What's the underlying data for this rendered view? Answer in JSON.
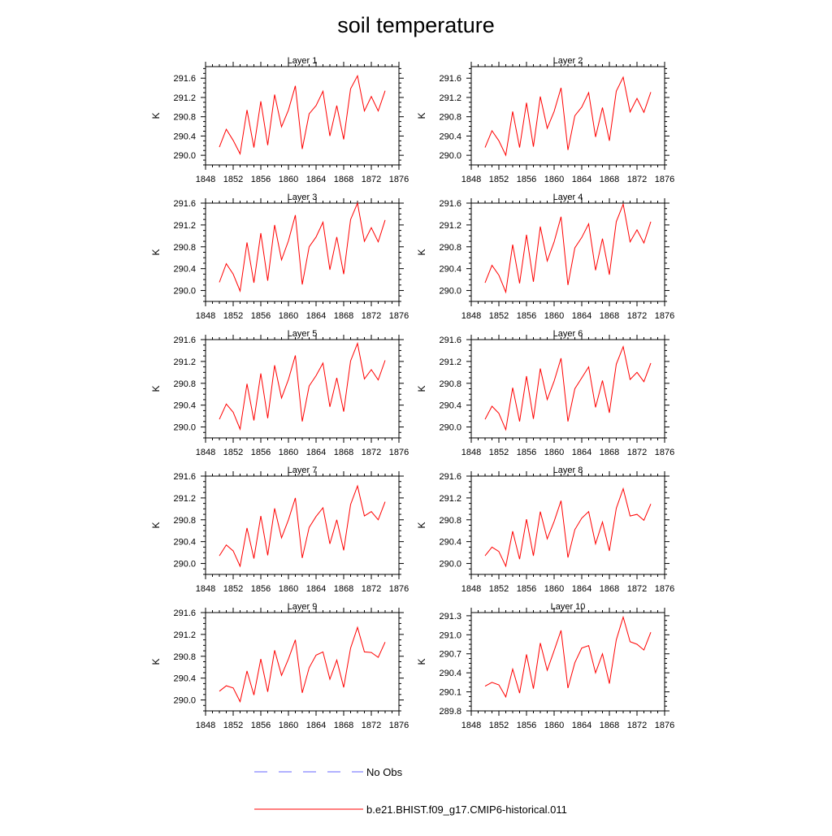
{
  "figure": {
    "title": "soil temperature",
    "legend": [
      {
        "label": "No Obs",
        "color": "#6464ff",
        "dash": "dashed"
      },
      {
        "label": "b.e21.BHIST.f09_g17.CMIP6-historical.011",
        "color": "#ff0000",
        "dash": "solid"
      }
    ]
  },
  "chart_data": [
    {
      "type": "line",
      "title": "Layer 1",
      "ylabel": "K",
      "x": [
        1850,
        1851,
        1852,
        1853,
        1854,
        1855,
        1856,
        1857,
        1858,
        1859,
        1860,
        1861,
        1862,
        1863,
        1864,
        1865,
        1866,
        1867,
        1868,
        1869,
        1870,
        1871,
        1872,
        1873,
        1874
      ],
      "series": [
        {
          "name": "b.e21.BHIST.f09_g17.CMIP6-historical.011",
          "color": "#ff0000",
          "values": [
            290.17,
            290.54,
            290.31,
            290.03,
            290.94,
            290.16,
            291.12,
            290.21,
            291.26,
            290.59,
            290.94,
            291.44,
            290.13,
            290.86,
            291.03,
            291.33,
            290.4,
            291.03,
            290.33,
            291.38,
            291.65,
            290.92,
            291.22,
            290.92,
            291.34
          ]
        }
      ],
      "xlim": [
        1848,
        1876
      ],
      "xticks": [
        1848,
        1852,
        1856,
        1860,
        1864,
        1868,
        1872,
        1876
      ],
      "ylim": [
        289.8,
        291.84
      ],
      "yticks": [
        290.0,
        290.4,
        290.8,
        291.2,
        291.6
      ],
      "ytick_labels": [
        "290.0",
        "290.4",
        "290.8",
        "291.2",
        "291.6"
      ]
    },
    {
      "type": "line",
      "title": "Layer 2",
      "ylabel": "K",
      "x": [
        1850,
        1851,
        1852,
        1853,
        1854,
        1855,
        1856,
        1857,
        1858,
        1859,
        1860,
        1861,
        1862,
        1863,
        1864,
        1865,
        1866,
        1867,
        1868,
        1869,
        1870,
        1871,
        1872,
        1873,
        1874
      ],
      "series": [
        {
          "name": "b.e21.BHIST.f09_g17.CMIP6-historical.011",
          "color": "#ff0000",
          "values": [
            290.16,
            290.51,
            290.3,
            290.0,
            290.91,
            290.16,
            291.09,
            290.18,
            291.22,
            290.56,
            290.91,
            291.4,
            290.11,
            290.82,
            291.0,
            291.3,
            290.38,
            290.99,
            290.3,
            291.33,
            291.62,
            290.9,
            291.18,
            290.89,
            291.31
          ]
        }
      ],
      "xlim": [
        1848,
        1876
      ],
      "xticks": [
        1848,
        1852,
        1856,
        1860,
        1864,
        1868,
        1872,
        1876
      ],
      "ylim": [
        289.8,
        291.84
      ],
      "yticks": [
        290.0,
        290.4,
        290.8,
        291.2,
        291.6
      ],
      "ytick_labels": [
        "290.0",
        "290.4",
        "290.8",
        "291.2",
        "291.6"
      ]
    },
    {
      "type": "line",
      "title": "Layer 3",
      "ylabel": "K",
      "x": [
        1850,
        1851,
        1852,
        1853,
        1854,
        1855,
        1856,
        1857,
        1858,
        1859,
        1860,
        1861,
        1862,
        1863,
        1864,
        1865,
        1866,
        1867,
        1868,
        1869,
        1870,
        1871,
        1872,
        1873,
        1874
      ],
      "series": [
        {
          "name": "b.e21.BHIST.f09_g17.CMIP6-historical.011",
          "color": "#ff0000",
          "values": [
            290.15,
            290.49,
            290.3,
            289.99,
            290.88,
            290.14,
            291.05,
            290.18,
            291.2,
            290.56,
            290.91,
            291.38,
            290.11,
            290.8,
            290.98,
            291.25,
            290.38,
            290.98,
            290.3,
            291.3,
            291.6,
            290.9,
            291.15,
            290.89,
            291.29
          ]
        }
      ],
      "xlim": [
        1848,
        1876
      ],
      "xticks": [
        1848,
        1852,
        1856,
        1860,
        1864,
        1868,
        1872,
        1876
      ],
      "ylim": [
        289.8,
        291.6
      ],
      "yticks": [
        290.0,
        290.4,
        290.8,
        291.2,
        291.6
      ],
      "ytick_labels": [
        "290.0",
        "290.4",
        "290.8",
        "291.2",
        "291.6"
      ]
    },
    {
      "type": "line",
      "title": "Layer 4",
      "ylabel": "K",
      "x": [
        1850,
        1851,
        1852,
        1853,
        1854,
        1855,
        1856,
        1857,
        1858,
        1859,
        1860,
        1861,
        1862,
        1863,
        1864,
        1865,
        1866,
        1867,
        1868,
        1869,
        1870,
        1871,
        1872,
        1873,
        1874
      ],
      "series": [
        {
          "name": "b.e21.BHIST.f09_g17.CMIP6-historical.011",
          "color": "#ff0000",
          "values": [
            290.14,
            290.46,
            290.28,
            289.97,
            290.84,
            290.13,
            291.02,
            290.16,
            291.17,
            290.54,
            290.89,
            291.35,
            290.1,
            290.78,
            290.97,
            291.22,
            290.37,
            290.95,
            290.29,
            291.26,
            291.58,
            290.89,
            291.11,
            290.87,
            291.26
          ]
        }
      ],
      "xlim": [
        1848,
        1876
      ],
      "xticks": [
        1848,
        1852,
        1856,
        1860,
        1864,
        1868,
        1872,
        1876
      ],
      "ylim": [
        289.8,
        291.6
      ],
      "yticks": [
        290.0,
        290.4,
        290.8,
        291.2,
        291.6
      ],
      "ytick_labels": [
        "290.0",
        "290.4",
        "290.8",
        "291.2",
        "291.6"
      ]
    },
    {
      "type": "line",
      "title": "Layer 5",
      "ylabel": "K",
      "x": [
        1850,
        1851,
        1852,
        1853,
        1854,
        1855,
        1856,
        1857,
        1858,
        1859,
        1860,
        1861,
        1862,
        1863,
        1864,
        1865,
        1866,
        1867,
        1868,
        1869,
        1870,
        1871,
        1872,
        1873,
        1874
      ],
      "series": [
        {
          "name": "b.e21.BHIST.f09_g17.CMIP6-historical.011",
          "color": "#ff0000",
          "values": [
            290.14,
            290.42,
            290.27,
            289.96,
            290.79,
            290.12,
            290.98,
            290.16,
            291.13,
            290.53,
            290.87,
            291.31,
            290.1,
            290.75,
            290.94,
            291.17,
            290.37,
            290.9,
            290.28,
            291.21,
            291.53,
            290.88,
            291.05,
            290.86,
            291.22
          ]
        }
      ],
      "xlim": [
        1848,
        1876
      ],
      "xticks": [
        1848,
        1852,
        1856,
        1860,
        1864,
        1868,
        1872,
        1876
      ],
      "ylim": [
        289.8,
        291.6
      ],
      "yticks": [
        290.0,
        290.4,
        290.8,
        291.2,
        291.6
      ],
      "ytick_labels": [
        "290.0",
        "290.4",
        "290.8",
        "291.2",
        "291.6"
      ]
    },
    {
      "type": "line",
      "title": "Layer 6",
      "ylabel": "K",
      "x": [
        1850,
        1851,
        1852,
        1853,
        1854,
        1855,
        1856,
        1857,
        1858,
        1859,
        1860,
        1861,
        1862,
        1863,
        1864,
        1865,
        1866,
        1867,
        1868,
        1869,
        1870,
        1871,
        1872,
        1873,
        1874
      ],
      "series": [
        {
          "name": "b.e21.BHIST.f09_g17.CMIP6-historical.011",
          "color": "#ff0000",
          "values": [
            290.14,
            290.38,
            290.25,
            289.95,
            290.72,
            290.1,
            290.93,
            290.15,
            291.07,
            290.5,
            290.84,
            291.26,
            290.1,
            290.7,
            290.9,
            291.1,
            290.36,
            290.85,
            290.26,
            291.15,
            291.47,
            290.87,
            291.0,
            290.83,
            291.17
          ]
        }
      ],
      "xlim": [
        1848,
        1876
      ],
      "xticks": [
        1848,
        1852,
        1856,
        1860,
        1864,
        1868,
        1872,
        1876
      ],
      "ylim": [
        289.8,
        291.6
      ],
      "yticks": [
        290.0,
        290.4,
        290.8,
        291.2,
        291.6
      ],
      "ytick_labels": [
        "290.0",
        "290.4",
        "290.8",
        "291.2",
        "291.6"
      ]
    },
    {
      "type": "line",
      "title": "Layer 7",
      "ylabel": "K",
      "x": [
        1850,
        1851,
        1852,
        1853,
        1854,
        1855,
        1856,
        1857,
        1858,
        1859,
        1860,
        1861,
        1862,
        1863,
        1864,
        1865,
        1866,
        1867,
        1868,
        1869,
        1870,
        1871,
        1872,
        1873,
        1874
      ],
      "series": [
        {
          "name": "b.e21.BHIST.f09_g17.CMIP6-historical.011",
          "color": "#ff0000",
          "values": [
            290.14,
            290.34,
            290.23,
            289.95,
            290.65,
            290.09,
            290.87,
            290.15,
            291.01,
            290.47,
            290.8,
            291.2,
            290.1,
            290.66,
            290.86,
            291.02,
            290.36,
            290.8,
            290.24,
            291.08,
            291.42,
            290.87,
            290.95,
            290.8,
            291.13
          ]
        }
      ],
      "xlim": [
        1848,
        1876
      ],
      "xticks": [
        1848,
        1852,
        1856,
        1860,
        1864,
        1868,
        1872,
        1876
      ],
      "ylim": [
        289.8,
        291.6
      ],
      "yticks": [
        290.0,
        290.4,
        290.8,
        291.2,
        291.6
      ],
      "ytick_labels": [
        "290.0",
        "290.4",
        "290.8",
        "291.2",
        "291.6"
      ]
    },
    {
      "type": "line",
      "title": "Layer 8",
      "ylabel": "K",
      "x": [
        1850,
        1851,
        1852,
        1853,
        1854,
        1855,
        1856,
        1857,
        1858,
        1859,
        1860,
        1861,
        1862,
        1863,
        1864,
        1865,
        1866,
        1867,
        1868,
        1869,
        1870,
        1871,
        1872,
        1873,
        1874
      ],
      "series": [
        {
          "name": "b.e21.BHIST.f09_g17.CMIP6-historical.011",
          "color": "#ff0000",
          "values": [
            290.14,
            290.3,
            290.22,
            289.95,
            290.59,
            290.08,
            290.81,
            290.14,
            290.95,
            290.45,
            290.77,
            291.15,
            290.11,
            290.62,
            290.83,
            290.95,
            290.36,
            290.76,
            290.23,
            291.01,
            291.37,
            290.87,
            290.9,
            290.79,
            291.09
          ]
        }
      ],
      "xlim": [
        1848,
        1876
      ],
      "xticks": [
        1848,
        1852,
        1856,
        1860,
        1864,
        1868,
        1872,
        1876
      ],
      "ylim": [
        289.8,
        291.6
      ],
      "yticks": [
        290.0,
        290.4,
        290.8,
        291.2,
        291.6
      ],
      "ytick_labels": [
        "290.0",
        "290.4",
        "290.8",
        "291.2",
        "291.6"
      ]
    },
    {
      "type": "line",
      "title": "Layer 9",
      "ylabel": "K",
      "x": [
        1850,
        1851,
        1852,
        1853,
        1854,
        1855,
        1856,
        1857,
        1858,
        1859,
        1860,
        1861,
        1862,
        1863,
        1864,
        1865,
        1866,
        1867,
        1868,
        1869,
        1870,
        1871,
        1872,
        1873,
        1874
      ],
      "series": [
        {
          "name": "b.e21.BHIST.f09_g17.CMIP6-historical.011",
          "color": "#ff0000",
          "values": [
            290.16,
            290.26,
            290.22,
            289.97,
            290.53,
            290.09,
            290.75,
            290.15,
            290.91,
            290.45,
            290.75,
            291.1,
            290.13,
            290.59,
            290.82,
            290.88,
            290.38,
            290.73,
            290.23,
            290.95,
            291.33,
            290.88,
            290.87,
            290.78,
            291.06
          ]
        }
      ],
      "xlim": [
        1848,
        1876
      ],
      "xticks": [
        1848,
        1852,
        1856,
        1860,
        1864,
        1868,
        1872,
        1876
      ],
      "ylim": [
        289.8,
        291.6
      ],
      "yticks": [
        290.0,
        290.4,
        290.8,
        291.2,
        291.6
      ],
      "ytick_labels": [
        "290.0",
        "290.4",
        "290.8",
        "291.2",
        "291.6"
      ]
    },
    {
      "type": "line",
      "title": "Layer 10",
      "ylabel": "K",
      "x": [
        1850,
        1851,
        1852,
        1853,
        1854,
        1855,
        1856,
        1857,
        1858,
        1859,
        1860,
        1861,
        1862,
        1863,
        1864,
        1865,
        1866,
        1867,
        1868,
        1869,
        1870,
        1871,
        1872,
        1873,
        1874
      ],
      "series": [
        {
          "name": "b.e21.BHIST.f09_g17.CMIP6-historical.011",
          "color": "#ff0000",
          "values": [
            290.19,
            290.25,
            290.21,
            290.02,
            290.46,
            290.08,
            290.69,
            290.15,
            290.87,
            290.44,
            290.75,
            291.07,
            290.16,
            290.56,
            290.79,
            290.83,
            290.4,
            290.7,
            290.23,
            290.92,
            291.28,
            290.89,
            290.85,
            290.76,
            291.04
          ]
        }
      ],
      "xlim": [
        1848,
        1876
      ],
      "xticks": [
        1848,
        1852,
        1856,
        1860,
        1864,
        1868,
        1872,
        1876
      ],
      "ylim": [
        289.8,
        291.35
      ],
      "yticks": [
        289.8,
        290.1,
        290.4,
        290.7,
        291.0,
        291.3
      ],
      "ytick_labels": [
        "289.8",
        "290.1",
        "290.4",
        "290.7",
        "291.0",
        "291.3"
      ]
    }
  ]
}
